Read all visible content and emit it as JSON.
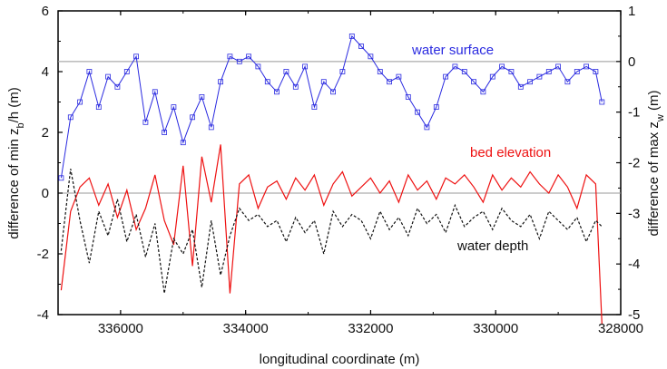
{
  "chart_data": {
    "type": "line",
    "xlabel": "longitudinal coordinate (m)",
    "ylabel_left": {
      "prefix": "difference of min z",
      "sub": "b",
      "suffix": "/h (m)"
    },
    "ylabel_right": {
      "prefix": "difference of max z",
      "sub": "w",
      "suffix": " (m)"
    },
    "x_axis": {
      "range": [
        337000,
        328000
      ],
      "reversed": true,
      "ticks": [
        336000,
        334000,
        332000,
        330000,
        328000
      ],
      "tick_labels": [
        "336000",
        "334000",
        "332000",
        "330000",
        "328000"
      ]
    },
    "y_left": {
      "range": [
        -4,
        6
      ],
      "ticks": [
        -4,
        -2,
        0,
        2,
        4,
        6
      ],
      "tick_labels": [
        "-4",
        "-2",
        "0",
        "2",
        "4",
        "6"
      ]
    },
    "y_right": {
      "range": [
        -5,
        1
      ],
      "ticks": [
        -5,
        -4,
        -3,
        -2,
        -1,
        0,
        1
      ],
      "tick_labels": [
        "-5",
        "-4",
        "-3",
        "-2",
        "-1",
        "0",
        "1"
      ]
    },
    "reference_lines": [
      {
        "axis": "right",
        "value": 0
      },
      {
        "axis": "left",
        "value": 0
      }
    ],
    "series": [
      {
        "name": "water surface",
        "axis": "right",
        "color": "#2a2ae0",
        "marker": "open-square",
        "x": [
          336950,
          336800,
          336650,
          336500,
          336350,
          336200,
          336050,
          335900,
          335750,
          335600,
          335450,
          335300,
          335150,
          335000,
          334850,
          334700,
          334550,
          334400,
          334250,
          334100,
          333950,
          333800,
          333650,
          333500,
          333350,
          333200,
          333050,
          332900,
          332750,
          332600,
          332450,
          332300,
          332150,
          332000,
          331850,
          331700,
          331550,
          331400,
          331250,
          331100,
          330950,
          330800,
          330650,
          330500,
          330350,
          330200,
          330050,
          329900,
          329750,
          329600,
          329450,
          329300,
          329150,
          329000,
          328850,
          328700,
          328550,
          328400,
          328300
        ],
        "values": [
          -2.3,
          -1.1,
          -0.8,
          -0.2,
          -0.9,
          -0.3,
          -0.5,
          -0.2,
          0.1,
          -1.2,
          -0.6,
          -1.4,
          -0.9,
          -1.6,
          -1.1,
          -0.7,
          -1.3,
          -0.4,
          0.1,
          0.0,
          0.1,
          -0.1,
          -0.4,
          -0.6,
          -0.2,
          -0.5,
          -0.1,
          -0.9,
          -0.4,
          -0.6,
          -0.2,
          0.5,
          0.3,
          0.1,
          -0.2,
          -0.4,
          -0.3,
          -0.7,
          -1.0,
          -1.3,
          -0.9,
          -0.3,
          -0.1,
          -0.2,
          -0.4,
          -0.6,
          -0.3,
          -0.1,
          -0.2,
          -0.5,
          -0.4,
          -0.3,
          -0.2,
          -0.1,
          -0.4,
          -0.2,
          -0.1,
          -0.2,
          -0.8
        ]
      },
      {
        "name": "bed elevation",
        "axis": "left",
        "color": "#ee1111",
        "x": [
          336950,
          336800,
          336650,
          336500,
          336350,
          336200,
          336050,
          335900,
          335750,
          335600,
          335450,
          335300,
          335150,
          335000,
          334850,
          334700,
          334550,
          334400,
          334250,
          334100,
          333950,
          333800,
          333650,
          333500,
          333350,
          333200,
          333050,
          332900,
          332750,
          332600,
          332450,
          332300,
          332150,
          332000,
          331850,
          331700,
          331550,
          331400,
          331250,
          331100,
          330950,
          330800,
          330650,
          330500,
          330350,
          330200,
          330050,
          329900,
          329750,
          329600,
          329450,
          329300,
          329150,
          329000,
          328850,
          328700,
          328550,
          328400,
          328300
        ],
        "values": [
          -3.2,
          -0.6,
          0.2,
          0.5,
          -0.4,
          0.3,
          -0.8,
          0.1,
          -1.2,
          -0.5,
          0.6,
          -0.9,
          -1.7,
          0.9,
          -2.4,
          1.2,
          -0.3,
          1.6,
          -3.3,
          0.3,
          0.6,
          -0.5,
          0.2,
          0.4,
          -0.2,
          0.5,
          0.1,
          0.6,
          -0.4,
          0.3,
          0.7,
          -0.1,
          0.2,
          0.5,
          0.0,
          0.4,
          -0.3,
          0.6,
          0.1,
          0.4,
          -0.2,
          0.5,
          0.3,
          0.6,
          0.2,
          -0.3,
          0.6,
          0.1,
          0.5,
          0.2,
          0.7,
          0.3,
          0.0,
          0.6,
          0.2,
          -0.5,
          0.6,
          0.3,
          -4.3
        ]
      },
      {
        "name": "water depth",
        "axis": "left",
        "color": "#111111",
        "dash": "3,2",
        "x": [
          336950,
          336800,
          336650,
          336500,
          336350,
          336200,
          336050,
          335900,
          335750,
          335600,
          335450,
          335300,
          335150,
          335000,
          334850,
          334700,
          334550,
          334400,
          334250,
          334100,
          333950,
          333800,
          333650,
          333500,
          333350,
          333200,
          333050,
          332900,
          332750,
          332600,
          332450,
          332300,
          332150,
          332000,
          331850,
          331700,
          331550,
          331400,
          331250,
          331100,
          330950,
          330800,
          330650,
          330500,
          330350,
          330200,
          330050,
          329900,
          329750,
          329600,
          329450,
          329300,
          329150,
          329000,
          328850,
          328700,
          328550,
          328400,
          328300
        ],
        "values": [
          -1.9,
          0.8,
          -0.9,
          -2.3,
          -0.6,
          -1.4,
          -0.2,
          -1.6,
          -0.7,
          -2.1,
          -1.0,
          -3.3,
          -1.5,
          -2.0,
          -1.2,
          -3.1,
          -0.9,
          -2.7,
          -1.4,
          -0.5,
          -0.9,
          -0.7,
          -1.1,
          -0.9,
          -1.6,
          -0.8,
          -1.3,
          -0.9,
          -2.0,
          -0.6,
          -1.1,
          -0.7,
          -0.9,
          -1.5,
          -0.6,
          -1.2,
          -0.8,
          -1.4,
          -0.5,
          -1.0,
          -0.7,
          -1.3,
          -0.4,
          -1.1,
          -0.8,
          -0.6,
          -1.2,
          -0.5,
          -0.9,
          -1.1,
          -0.7,
          -1.5,
          -0.6,
          -0.9,
          -1.2,
          -0.8,
          -1.6,
          -0.9,
          -1.1
        ]
      }
    ],
    "annotations": [
      {
        "text": "water surface",
        "color": "#2a2ae0"
      },
      {
        "text": "bed elevation",
        "color": "#ee1111"
      },
      {
        "text": "water depth",
        "color": "#111111"
      }
    ]
  }
}
